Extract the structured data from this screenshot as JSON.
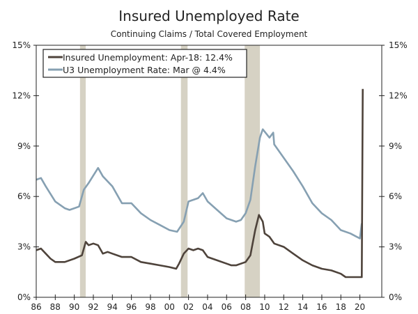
{
  "chart_data": {
    "type": "line",
    "title": "Insured Unemployed Rate",
    "subtitle": "Continuing Claims / Total Covered Employment",
    "xlabel": "",
    "ylabel": "",
    "xlim": [
      1986,
      2022.3
    ],
    "ylim": [
      0,
      15
    ],
    "x_ticks": [
      1986,
      1988,
      1990,
      1992,
      1994,
      1996,
      1998,
      2000,
      2002,
      2004,
      2006,
      2008,
      2010,
      2012,
      2014,
      2016,
      2018,
      2020
    ],
    "x_tick_labels": [
      "86",
      "88",
      "90",
      "92",
      "94",
      "96",
      "98",
      "00",
      "02",
      "04",
      "06",
      "08",
      "10",
      "12",
      "14",
      "16",
      "18",
      "20"
    ],
    "y_ticks": [
      0,
      3,
      6,
      9,
      12,
      15
    ],
    "y_tick_labels": [
      "0%",
      "3%",
      "6%",
      "9%",
      "12%",
      "15%"
    ],
    "grid": false,
    "legend_position": "top-left",
    "recessions": [
      [
        1990.6,
        1991.2
      ],
      [
        2001.2,
        2001.9
      ],
      [
        2007.9,
        2009.5
      ]
    ],
    "colors": {
      "recession": "#d6d2c4",
      "insured": "#4e433b",
      "u3": "#86a0b2"
    },
    "series": [
      {
        "name": "Insured Unemployment: Apr-18: 12.4%",
        "key": "insured",
        "x": [
          1986,
          1986.5,
          1987,
          1987.5,
          1988,
          1989,
          1990,
          1990.8,
          1991.2,
          1991.5,
          1992,
          1992.5,
          1993,
          1993.5,
          1994,
          1995,
          1996,
          1997,
          1998,
          1999,
          2000,
          2000.7,
          2001,
          2001.5,
          2002,
          2002.5,
          2003,
          2003.5,
          2004,
          2005,
          2006,
          2006.5,
          2007,
          2008,
          2008.5,
          2009,
          2009.4,
          2009.8,
          2010,
          2010.5,
          2011,
          2012,
          2013,
          2014,
          2015,
          2016,
          2017,
          2018,
          2018.5,
          2020.2,
          2020.3
        ],
        "y": [
          2.8,
          2.9,
          2.6,
          2.3,
          2.1,
          2.1,
          2.3,
          2.5,
          3.3,
          3.1,
          3.2,
          3.1,
          2.6,
          2.7,
          2.6,
          2.4,
          2.4,
          2.1,
          2.0,
          1.9,
          1.8,
          1.7,
          2.0,
          2.6,
          2.9,
          2.8,
          2.9,
          2.8,
          2.4,
          2.2,
          2.0,
          1.9,
          1.9,
          2.1,
          2.5,
          4.0,
          4.9,
          4.5,
          3.8,
          3.6,
          3.2,
          3.0,
          2.6,
          2.2,
          1.9,
          1.7,
          1.6,
          1.4,
          1.2,
          1.2,
          12.4
        ]
      },
      {
        "name": "U3 Unemployment Rate: Mar @ 4.4%",
        "key": "u3",
        "x": [
          1986,
          1986.5,
          1987,
          1988,
          1989,
          1989.5,
          1990,
          1990.5,
          1991,
          1991.5,
          1992.5,
          1993,
          1994,
          1995,
          1996,
          1997,
          1998,
          1999,
          2000,
          2000.8,
          2001.5,
          2002,
          2003,
          2003.5,
          2004,
          2005,
          2006,
          2007,
          2007.5,
          2008,
          2008.5,
          2009,
          2009.5,
          2009.8,
          2010.5,
          2010.9,
          2011,
          2012,
          2013,
          2014,
          2015,
          2016,
          2017,
          2018,
          2019,
          2020,
          2020.2
        ],
        "y": [
          7.0,
          7.1,
          6.6,
          5.7,
          5.3,
          5.2,
          5.3,
          5.4,
          6.4,
          6.8,
          7.7,
          7.2,
          6.6,
          5.6,
          5.6,
          5.0,
          4.6,
          4.3,
          4.0,
          3.9,
          4.5,
          5.7,
          5.9,
          6.2,
          5.7,
          5.2,
          4.7,
          4.5,
          4.6,
          5.0,
          5.8,
          7.8,
          9.5,
          10.0,
          9.5,
          9.8,
          9.1,
          8.3,
          7.5,
          6.6,
          5.6,
          5.0,
          4.6,
          4.0,
          3.8,
          3.5,
          4.4
        ]
      }
    ]
  }
}
